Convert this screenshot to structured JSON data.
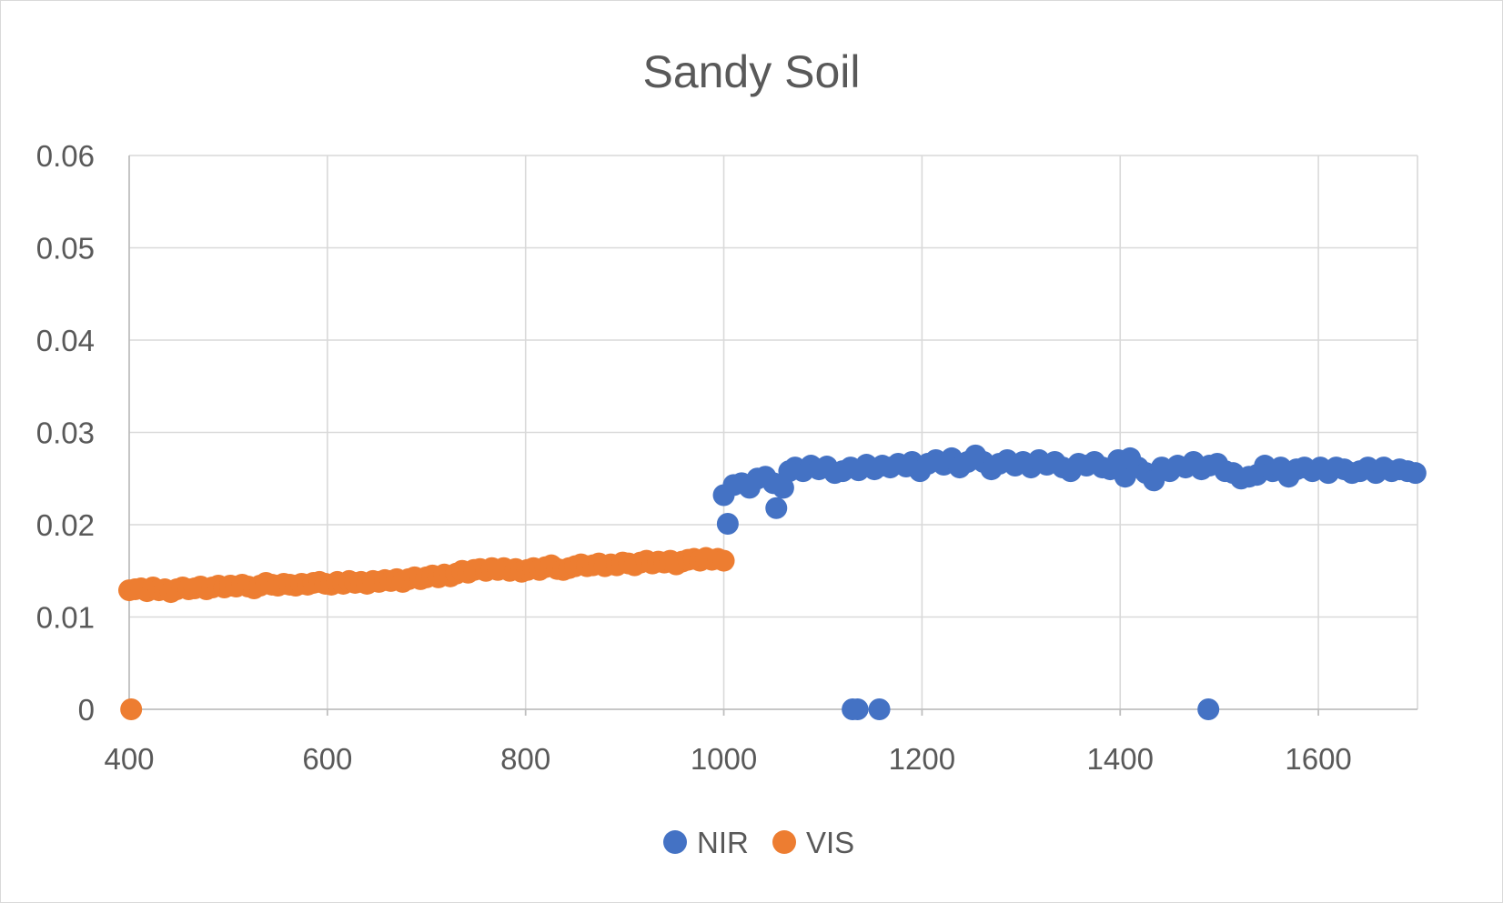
{
  "chart_data": {
    "type": "scatter",
    "title": "Sandy Soil",
    "xlabel": "",
    "ylabel": "",
    "xlim": [
      400,
      1700
    ],
    "ylim": [
      0,
      0.06
    ],
    "x_ticks": [
      "400",
      "600",
      "800",
      "1000",
      "1200",
      "1400",
      "1600"
    ],
    "y_ticks": [
      "0",
      "0.01",
      "0.02",
      "0.03",
      "0.04",
      "0.05",
      "0.06"
    ],
    "grid": true,
    "legend_position": "bottom",
    "series": [
      {
        "name": "NIR",
        "color": "#4472C4",
        "points": [
          [
            1000,
            0.0232
          ],
          [
            1004,
            0.0201
          ],
          [
            1010,
            0.0243
          ],
          [
            1018,
            0.0245
          ],
          [
            1026,
            0.024
          ],
          [
            1034,
            0.025
          ],
          [
            1042,
            0.0252
          ],
          [
            1050,
            0.0245
          ],
          [
            1053,
            0.0218
          ],
          [
            1060,
            0.024
          ],
          [
            1066,
            0.0258
          ],
          [
            1072,
            0.0262
          ],
          [
            1080,
            0.0258
          ],
          [
            1088,
            0.0264
          ],
          [
            1096,
            0.026
          ],
          [
            1104,
            0.0263
          ],
          [
            1112,
            0.0256
          ],
          [
            1120,
            0.0258
          ],
          [
            1128,
            0.0262
          ],
          [
            1136,
            0.0259
          ],
          [
            1144,
            0.0265
          ],
          [
            1152,
            0.026
          ],
          [
            1160,
            0.0264
          ],
          [
            1168,
            0.0262
          ],
          [
            1176,
            0.0266
          ],
          [
            1184,
            0.0263
          ],
          [
            1190,
            0.0268
          ],
          [
            1198,
            0.0258
          ],
          [
            1206,
            0.0266
          ],
          [
            1214,
            0.027
          ],
          [
            1222,
            0.0265
          ],
          [
            1230,
            0.0272
          ],
          [
            1238,
            0.0262
          ],
          [
            1246,
            0.0268
          ],
          [
            1254,
            0.0275
          ],
          [
            1262,
            0.0268
          ],
          [
            1270,
            0.026
          ],
          [
            1278,
            0.0266
          ],
          [
            1286,
            0.027
          ],
          [
            1294,
            0.0264
          ],
          [
            1302,
            0.0268
          ],
          [
            1310,
            0.0262
          ],
          [
            1318,
            0.027
          ],
          [
            1326,
            0.0265
          ],
          [
            1334,
            0.0268
          ],
          [
            1342,
            0.0262
          ],
          [
            1350,
            0.0258
          ],
          [
            1358,
            0.0266
          ],
          [
            1366,
            0.0264
          ],
          [
            1374,
            0.0268
          ],
          [
            1382,
            0.0262
          ],
          [
            1390,
            0.026
          ],
          [
            1398,
            0.027
          ],
          [
            1405,
            0.0252
          ],
          [
            1410,
            0.0272
          ],
          [
            1418,
            0.0262
          ],
          [
            1426,
            0.0256
          ],
          [
            1434,
            0.0248
          ],
          [
            1442,
            0.0262
          ],
          [
            1450,
            0.0258
          ],
          [
            1458,
            0.0264
          ],
          [
            1466,
            0.0262
          ],
          [
            1474,
            0.0268
          ],
          [
            1482,
            0.026
          ],
          [
            1490,
            0.0264
          ],
          [
            1498,
            0.0266
          ],
          [
            1506,
            0.0258
          ],
          [
            1514,
            0.0256
          ],
          [
            1522,
            0.025
          ],
          [
            1530,
            0.0252
          ],
          [
            1538,
            0.0254
          ],
          [
            1546,
            0.0264
          ],
          [
            1554,
            0.0258
          ],
          [
            1562,
            0.0262
          ],
          [
            1570,
            0.0252
          ],
          [
            1578,
            0.026
          ],
          [
            1586,
            0.0262
          ],
          [
            1594,
            0.0258
          ],
          [
            1602,
            0.0262
          ],
          [
            1610,
            0.0256
          ],
          [
            1618,
            0.0262
          ],
          [
            1626,
            0.026
          ],
          [
            1634,
            0.0256
          ],
          [
            1642,
            0.0258
          ],
          [
            1650,
            0.0262
          ],
          [
            1658,
            0.0256
          ],
          [
            1666,
            0.0262
          ],
          [
            1674,
            0.0258
          ],
          [
            1682,
            0.026
          ],
          [
            1690,
            0.0258
          ],
          [
            1698,
            0.0256
          ],
          [
            1130,
            0.0
          ],
          [
            1135,
            0.0
          ],
          [
            1157,
            0.0
          ],
          [
            1489,
            0.0
          ]
        ]
      },
      {
        "name": "VIS",
        "color": "#ED7D31",
        "points": [
          [
            400,
            0.0129
          ],
          [
            406,
            0.013
          ],
          [
            412,
            0.0131
          ],
          [
            418,
            0.0128
          ],
          [
            424,
            0.0132
          ],
          [
            430,
            0.0129
          ],
          [
            436,
            0.013
          ],
          [
            442,
            0.0127
          ],
          [
            448,
            0.013
          ],
          [
            454,
            0.0132
          ],
          [
            460,
            0.013
          ],
          [
            466,
            0.0131
          ],
          [
            472,
            0.0133
          ],
          [
            478,
            0.013
          ],
          [
            484,
            0.0132
          ],
          [
            490,
            0.0134
          ],
          [
            496,
            0.0132
          ],
          [
            502,
            0.0134
          ],
          [
            508,
            0.0133
          ],
          [
            514,
            0.0135
          ],
          [
            520,
            0.0133
          ],
          [
            526,
            0.0131
          ],
          [
            532,
            0.0134
          ],
          [
            538,
            0.0137
          ],
          [
            544,
            0.0135
          ],
          [
            550,
            0.0134
          ],
          [
            556,
            0.0136
          ],
          [
            562,
            0.0135
          ],
          [
            568,
            0.0134
          ],
          [
            574,
            0.0136
          ],
          [
            580,
            0.0135
          ],
          [
            586,
            0.0137
          ],
          [
            592,
            0.0138
          ],
          [
            598,
            0.0136
          ],
          [
            604,
            0.0135
          ],
          [
            610,
            0.0138
          ],
          [
            616,
            0.0136
          ],
          [
            622,
            0.0139
          ],
          [
            628,
            0.0137
          ],
          [
            634,
            0.0138
          ],
          [
            640,
            0.0136
          ],
          [
            646,
            0.0139
          ],
          [
            652,
            0.0138
          ],
          [
            658,
            0.014
          ],
          [
            664,
            0.0139
          ],
          [
            670,
            0.0141
          ],
          [
            676,
            0.0138
          ],
          [
            682,
            0.0141
          ],
          [
            688,
            0.0143
          ],
          [
            694,
            0.0141
          ],
          [
            700,
            0.0143
          ],
          [
            706,
            0.0145
          ],
          [
            712,
            0.0143
          ],
          [
            718,
            0.0146
          ],
          [
            724,
            0.0144
          ],
          [
            730,
            0.0147
          ],
          [
            736,
            0.015
          ],
          [
            742,
            0.0148
          ],
          [
            748,
            0.0151
          ],
          [
            754,
            0.0152
          ],
          [
            760,
            0.015
          ],
          [
            766,
            0.0153
          ],
          [
            772,
            0.0151
          ],
          [
            778,
            0.0153
          ],
          [
            784,
            0.015
          ],
          [
            790,
            0.0152
          ],
          [
            796,
            0.0149
          ],
          [
            802,
            0.0151
          ],
          [
            808,
            0.0153
          ],
          [
            814,
            0.0151
          ],
          [
            820,
            0.0154
          ],
          [
            826,
            0.0156
          ],
          [
            832,
            0.0152
          ],
          [
            838,
            0.0151
          ],
          [
            844,
            0.0153
          ],
          [
            850,
            0.0155
          ],
          [
            856,
            0.0157
          ],
          [
            862,
            0.0155
          ],
          [
            868,
            0.0156
          ],
          [
            874,
            0.0158
          ],
          [
            880,
            0.0155
          ],
          [
            886,
            0.0157
          ],
          [
            892,
            0.0156
          ],
          [
            898,
            0.0159
          ],
          [
            904,
            0.0158
          ],
          [
            910,
            0.0156
          ],
          [
            916,
            0.0159
          ],
          [
            922,
            0.0161
          ],
          [
            928,
            0.0158
          ],
          [
            934,
            0.016
          ],
          [
            940,
            0.0159
          ],
          [
            946,
            0.0161
          ],
          [
            952,
            0.0157
          ],
          [
            958,
            0.016
          ],
          [
            964,
            0.0162
          ],
          [
            970,
            0.0163
          ],
          [
            976,
            0.0161
          ],
          [
            982,
            0.0164
          ],
          [
            988,
            0.0162
          ],
          [
            994,
            0.0163
          ],
          [
            1000,
            0.0161
          ],
          [
            402,
            0.0
          ]
        ]
      }
    ]
  }
}
